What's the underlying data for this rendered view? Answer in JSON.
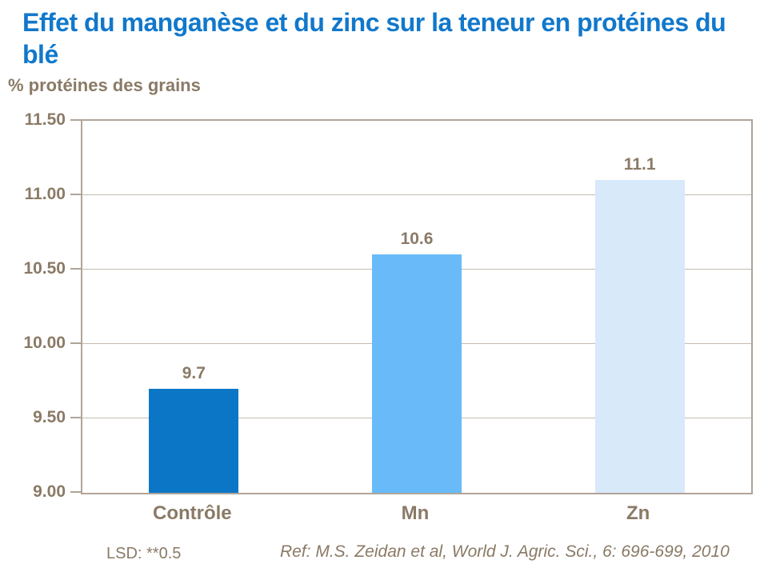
{
  "title": "Effet du manganèse et du zinc sur la teneur en protéines du blé",
  "colors": {
    "title_blue": "#1178CB",
    "text_brown": "#8A7A66",
    "axis_border": "#B0A498",
    "gridline": "#C4BBAE",
    "bar_controle": "#0C76C6",
    "bar_mn": "#68BBF8",
    "bar_zn": "#D8E9FA"
  },
  "footer": {
    "lsd": "LSD: **0.5",
    "ref": "Ref: M.S. Zeidan et al, World J. Agric. Sci., 6: 696-699, 2010"
  },
  "chart_data": {
    "type": "bar",
    "title": "Effet du manganèse et du zinc sur la teneur en protéines du blé",
    "ylabel": "% protéines des grains",
    "xlabel": "",
    "categories": [
      "Contrôle",
      "Mn",
      "Zn"
    ],
    "values": [
      9.7,
      10.6,
      11.1
    ],
    "data_labels": [
      "9.7",
      "10.6",
      "11.1"
    ],
    "bar_colors": [
      "#0C76C6",
      "#68BBF8",
      "#D8E9FA"
    ],
    "ylim": [
      9.0,
      11.5
    ],
    "yticks": [
      {
        "value": 11.5,
        "label": "11.50"
      },
      {
        "value": 11.0,
        "label": "11.00"
      },
      {
        "value": 10.5,
        "label": "10.50"
      },
      {
        "value": 10.0,
        "label": "10.00"
      },
      {
        "value": 9.5,
        "label": "9.50"
      },
      {
        "value": 9.0,
        "label": "9.00"
      }
    ],
    "grid": true,
    "legend": false
  }
}
